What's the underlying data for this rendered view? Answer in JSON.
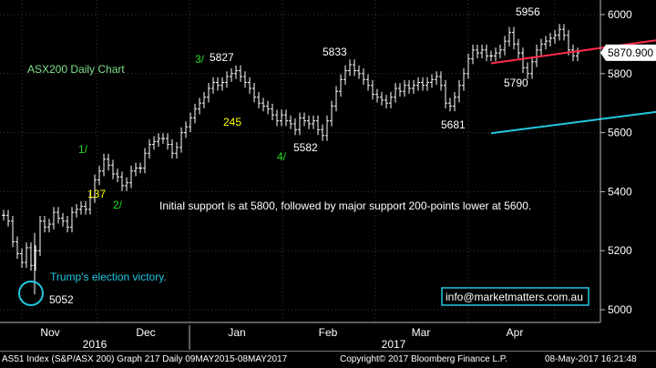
{
  "chart_data": {
    "type": "line",
    "subtype": "ohlc-bar",
    "title": "ASX200 Daily Chart",
    "ylim": [
      4950,
      6060
    ],
    "y_ticks": [
      5000,
      5200,
      5400,
      5600,
      5800,
      6000
    ],
    "y_tick_labels": [
      "5000",
      "5200",
      "5400",
      "5600",
      "5800",
      "6000"
    ],
    "x_month_labels": [
      "Nov",
      "Dec",
      "Jan",
      "Feb",
      "Mar",
      "Apr"
    ],
    "x_year_labels": [
      "2016",
      "2017"
    ],
    "last_price": "5870.900",
    "series": [
      {
        "values": [
          5320,
          5300,
          5230,
          5190,
          5160,
          5210,
          5150,
          5200,
          5300,
          5280,
          5290,
          5330,
          5310,
          5300,
          5280,
          5330,
          5340,
          5350,
          5340,
          5380,
          5440,
          5470,
          5510,
          5490,
          5460,
          5450,
          5420,
          5430,
          5470,
          5480,
          5480,
          5530,
          5560,
          5570,
          5580,
          5580,
          5560,
          5530,
          5550,
          5600,
          5620,
          5650,
          5680,
          5700,
          5720,
          5750,
          5770,
          5760,
          5770,
          5790,
          5800,
          5810,
          5790,
          5770,
          5750,
          5720,
          5700,
          5690,
          5680,
          5660,
          5640,
          5660,
          5640,
          5630,
          5610,
          5650,
          5640,
          5630,
          5640,
          5610,
          5590,
          5640,
          5690,
          5740,
          5780,
          5810,
          5830,
          5810,
          5800,
          5780,
          5760,
          5730,
          5720,
          5710,
          5700,
          5720,
          5750,
          5740,
          5760,
          5750,
          5760,
          5770,
          5760,
          5770,
          5780,
          5790,
          5760,
          5700,
          5690,
          5720,
          5760,
          5800,
          5850,
          5880,
          5870,
          5880,
          5860,
          5860,
          5870,
          5880,
          5910,
          5940,
          5900,
          5870,
          5820,
          5800,
          5840,
          5880,
          5900,
          5910,
          5920,
          5930,
          5950,
          5930,
          5880,
          5860,
          5870
        ]
      }
    ],
    "trend_lines": [
      {
        "color": "#ff2a4a",
        "from": [
          107,
          5835
        ],
        "to": [
          185,
          6003
        ]
      },
      {
        "color": "#22c8e0",
        "from": [
          107,
          5598
        ],
        "to": [
          200,
          5783
        ]
      }
    ],
    "annotations": [
      {
        "text": "ASX200 Daily Chart",
        "color": "#7fe08a"
      },
      {
        "text": "1/",
        "color": "#22dd22"
      },
      {
        "text": "137",
        "color": "#ffff00"
      },
      {
        "text": "2/",
        "color": "#22dd22"
      },
      {
        "text": "3/",
        "color": "#22dd22"
      },
      {
        "text": "5827",
        "color": "#ffffff"
      },
      {
        "text": "245",
        "color": "#ffff00"
      },
      {
        "text": "4/",
        "color": "#22dd22"
      },
      {
        "text": "5582",
        "color": "#ffffff"
      },
      {
        "text": "5833",
        "color": "#ffffff"
      },
      {
        "text": "5681",
        "color": "#ffffff"
      },
      {
        "text": "5956",
        "color": "#ffffff"
      },
      {
        "text": "5790",
        "color": "#ffffff"
      },
      {
        "text": "5052",
        "color": "#ffffff"
      },
      {
        "text": "Trump's election victory.",
        "color": "#22c8e0"
      },
      {
        "text": "Initial support is at 5800, followed by major support 200-points lower at 5600.",
        "color": "#ffffff"
      },
      {
        "text": "info@marketmatters.com.au",
        "color": "#ffffff"
      }
    ]
  },
  "footer": {
    "left": "AS51 Index (S&P/ASX 200) Graph 217  Daily 09MAY2015-08MAY2017",
    "center": "Copyright© 2017 Bloomberg Finance L.P.",
    "right": "08-May-2017 16:21:48"
  }
}
